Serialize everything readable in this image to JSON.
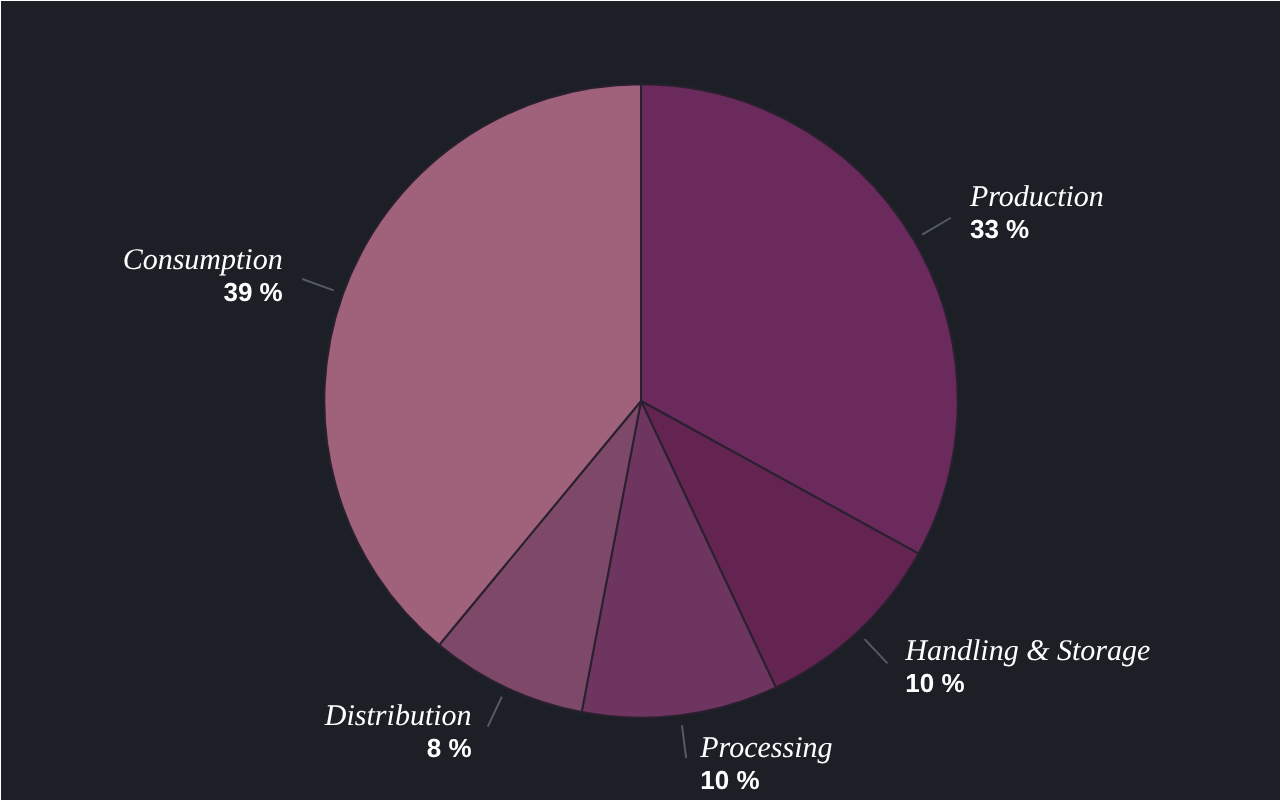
{
  "chart_data": {
    "type": "pie",
    "categories": [
      "Production",
      "Handling & Storage",
      "Processing",
      "Distribution",
      "Consumption"
    ],
    "values": [
      33,
      10,
      10,
      8,
      39
    ],
    "value_labels": [
      "33 %",
      "10 %",
      "10 %",
      "8 %",
      "39 %"
    ],
    "colors": [
      "#6a2a5c",
      "#642452",
      "#6e3560",
      "#7e4868",
      "#a0627a"
    ]
  }
}
